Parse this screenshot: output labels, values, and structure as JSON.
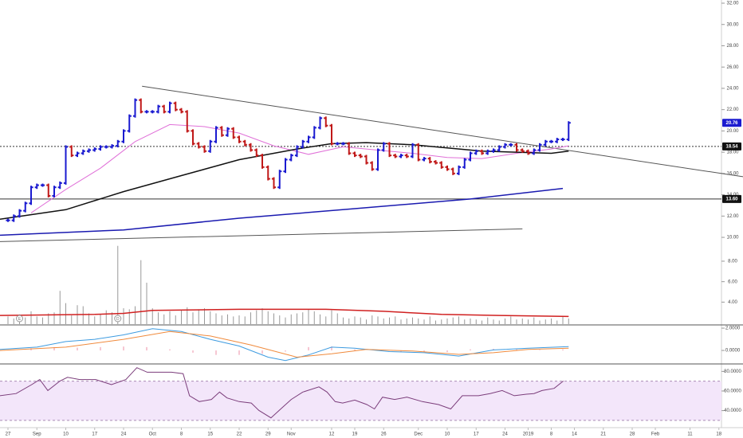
{
  "chart_data": [
    {
      "type": "price",
      "xlim": [
        -1.38,
        127.17
      ],
      "ylim": [
        9.48,
        32.3
      ],
      "yticks": [
        {
          "value": 32,
          "label": "32.00"
        },
        {
          "value": 30,
          "label": "30.00"
        },
        {
          "value": 28,
          "label": "28.00"
        },
        {
          "value": 26,
          "label": "26.00"
        },
        {
          "value": 24,
          "label": "24.00"
        },
        {
          "value": 22,
          "label": "22.00"
        },
        {
          "value": 20,
          "label": "20.00"
        },
        {
          "value": 18,
          "label": "18.00"
        },
        {
          "value": 16,
          "label": "16.00"
        },
        {
          "value": 14,
          "label": "14.00"
        },
        {
          "value": 12,
          "label": "12.00"
        },
        {
          "value": 10,
          "label": "10.00"
        }
      ],
      "xticks": [
        {
          "value": 0,
          "label": "27"
        },
        {
          "value": 5,
          "label": "Sep"
        },
        {
          "value": 10,
          "label": "10"
        },
        {
          "value": 15,
          "label": "17"
        },
        {
          "value": 20,
          "label": "24"
        },
        {
          "value": 25,
          "label": "Oct"
        },
        {
          "value": 30,
          "label": "8"
        },
        {
          "value": 35,
          "label": "15"
        },
        {
          "value": 40,
          "label": "22"
        },
        {
          "value": 45,
          "label": "29"
        },
        {
          "value": 49,
          "label": "Nov"
        },
        {
          "value": 56,
          "label": "12"
        },
        {
          "value": 60,
          "label": "19"
        },
        {
          "value": 65,
          "label": "26"
        },
        {
          "value": 71,
          "label": "Dec"
        },
        {
          "value": 76,
          "label": "10"
        },
        {
          "value": 81,
          "label": "17"
        },
        {
          "value": 86,
          "label": "24"
        },
        {
          "value": 90,
          "label": "2019"
        },
        {
          "value": 94,
          "label": "8"
        },
        {
          "value": 98,
          "label": "14"
        },
        {
          "value": 103,
          "label": "21"
        },
        {
          "value": 108,
          "label": "28"
        },
        {
          "value": 112,
          "label": "Feb"
        },
        {
          "value": 118,
          "label": "11"
        },
        {
          "value": 123,
          "label": "18"
        }
      ],
      "up_color": "#1a1ad0",
      "down_color": "#c01818",
      "values": [
        11.6,
        12.0,
        12.5,
        13.2,
        14.7,
        14.9,
        14.9,
        13.9,
        14.7,
        15.1,
        18.5,
        17.7,
        17.9,
        18.1,
        18.2,
        18.3,
        18.5,
        18.5,
        18.6,
        19.0,
        20.0,
        21.4,
        22.9,
        21.8,
        21.8,
        21.8,
        22.3,
        21.8,
        22.6,
        22.0,
        21.8,
        20.0,
        18.8,
        18.5,
        18.1,
        19.0,
        20.3,
        19.6,
        20.2,
        19.4,
        19.0,
        18.7,
        18.2,
        17.7,
        16.6,
        15.5,
        14.7,
        16.2,
        17.3,
        17.7,
        18.5,
        19.0,
        19.4,
        20.3,
        21.2,
        20.5,
        18.8,
        18.8,
        18.8,
        17.9,
        17.7,
        17.6,
        17.0,
        16.4,
        18.2,
        18.8,
        17.7,
        17.6,
        17.7,
        17.6,
        18.7,
        17.3,
        17.4,
        17.1,
        17.0,
        16.6,
        16.4,
        16.0,
        16.6,
        17.3,
        17.9,
        18.1,
        17.9,
        18.1,
        18.2,
        18.5,
        18.7,
        18.7,
        18.2,
        18.1,
        17.9,
        18.2,
        18.7,
        19.0,
        19.0,
        19.2,
        19.2,
        20.76
      ],
      "lines": [
        {
          "color": "#e070d8",
          "x": [
            4,
            10,
            16,
            22,
            28,
            34,
            40,
            46,
            52,
            58,
            64,
            70,
            76,
            82,
            88,
            94,
            97
          ],
          "values": [
            12.3,
            14.5,
            16.5,
            19.0,
            20.6,
            20.4,
            19.8,
            18.6,
            17.8,
            18.5,
            18.2,
            17.9,
            17.5,
            17.4,
            17.9,
            18.3,
            18.6
          ]
        },
        {
          "color": "#111111",
          "x": [
            -1.38,
            10,
            20,
            30,
            40,
            50,
            56,
            62,
            70,
            76,
            82,
            88,
            94,
            97
          ],
          "values": [
            11.7,
            12.6,
            14.3,
            15.8,
            17.3,
            18.3,
            18.8,
            18.9,
            18.7,
            18.4,
            18.1,
            18.0,
            17.9,
            18.1
          ]
        },
        {
          "color": "#1a1ab0",
          "x": [
            -1.38,
            20,
            40,
            60,
            80,
            96
          ],
          "values": [
            10.2,
            10.7,
            11.8,
            12.7,
            13.6,
            14.6
          ]
        }
      ],
      "trendlines": [
        {
          "color": "#555555",
          "x": [
            23.2,
            127.17
          ],
          "values": [
            24.2,
            15.7
          ]
        },
        {
          "color": "#555555",
          "x": [
            -1.38,
            89
          ],
          "values": [
            9.6,
            10.8
          ]
        }
      ],
      "levels": [
        {
          "value": 18.54,
          "label": "18.54",
          "style": "dotted"
        },
        {
          "value": 13.6,
          "label": "13.60",
          "style": "solid"
        }
      ],
      "last": {
        "value": 20.76,
        "label": "20.76"
      }
    },
    {
      "type": "volume",
      "ylim": [
        1.85,
        10.1
      ],
      "yticks": [
        {
          "value": 8,
          "label": "8.00"
        },
        {
          "value": 6,
          "label": "6.00"
        },
        {
          "value": 4,
          "label": "4.00"
        }
      ],
      "color": "#999999",
      "values": [
        2.6,
        2.4,
        2.8,
        2.5,
        3.1,
        2.6,
        2.5,
        2.9,
        3.0,
        5.1,
        3.9,
        2.7,
        3.7,
        3.6,
        2.9,
        2.6,
        2.8,
        3.2,
        3.0,
        9.5,
        3.4,
        3.3,
        3.6,
        8.1,
        5.9,
        3.4,
        3.0,
        2.8,
        3.1,
        2.7,
        3.2,
        3.5,
        3.0,
        3.3,
        3.4,
        3.1,
        2.9,
        2.7,
        2.8,
        2.6,
        2.7,
        2.6,
        3.0,
        3.2,
        3.4,
        3.1,
        2.9,
        2.7,
        2.5,
        2.8,
        2.9,
        3.0,
        3.3,
        3.1,
        2.8,
        2.6,
        3.2,
        2.9,
        2.5,
        2.4,
        2.6,
        2.5,
        2.3,
        2.7,
        2.6,
        2.4,
        2.5,
        2.6,
        2.3,
        2.4,
        2.5,
        2.4,
        2.3,
        2.6,
        2.2,
        2.3,
        2.4,
        2.5,
        2.6,
        2.3,
        2.4,
        2.3,
        2.2,
        2.5,
        2.3,
        2.2,
        2.4,
        2.6,
        2.3,
        2.4,
        2.3,
        2.5,
        2.2,
        2.3,
        2.4,
        2.2,
        2.6,
        2.4
      ],
      "ma": {
        "color": "#d02020",
        "x": [
          -1.38,
          15,
          20,
          25,
          40,
          55,
          65,
          75,
          85,
          97
        ],
        "values": [
          2.7,
          2.8,
          2.9,
          3.2,
          3.3,
          3.3,
          3.1,
          2.8,
          2.7,
          2.6
        ]
      },
      "events": [
        {
          "x": 2,
          "label": "E"
        },
        {
          "x": 19,
          "label": "D"
        }
      ]
    },
    {
      "type": "macd",
      "ylim": [
        -1.21,
        2.29
      ],
      "yticks": [
        {
          "value": 2,
          "label": "2.0000"
        },
        {
          "value": 0,
          "label": "0.0000"
        }
      ],
      "histogram": {
        "color": "#f0a0b4",
        "x": [
          0,
          4,
          8,
          12,
          16,
          20,
          24,
          28,
          32,
          36,
          40,
          44,
          48,
          52,
          56,
          60,
          64,
          68,
          72,
          76,
          80,
          84,
          88,
          92,
          96
        ],
        "values": [
          0.05,
          0.2,
          0.3,
          0.25,
          0.3,
          0.35,
          0.3,
          0.1,
          -0.2,
          -0.4,
          -0.4,
          -0.3,
          -0.1,
          0.3,
          0.35,
          0.1,
          0,
          -0.1,
          -0.1,
          -0.15,
          0.1,
          0.15,
          0.1,
          0.05,
          0.1
        ]
      },
      "lines": [
        {
          "color": "#3d9be0",
          "x": [
            -1.38,
            5,
            10,
            15,
            20,
            25,
            30,
            35,
            40,
            45,
            48,
            52,
            56,
            60,
            66,
            72,
            78,
            84,
            90,
            97
          ],
          "values": [
            0.1,
            0.3,
            0.8,
            1.0,
            1.4,
            1.95,
            1.7,
            1.0,
            0.4,
            -0.6,
            -0.9,
            -0.4,
            0.3,
            0.2,
            -0.1,
            -0.2,
            -0.5,
            0.05,
            0.2,
            0.35
          ]
        },
        {
          "color": "#f08a3c",
          "x": [
            -1.38,
            10,
            20,
            28,
            35,
            42,
            50,
            56,
            62,
            70,
            78,
            84,
            90,
            97
          ],
          "values": [
            0.0,
            0.3,
            1.0,
            1.7,
            1.3,
            0.5,
            -0.6,
            -0.3,
            0.1,
            -0.05,
            -0.35,
            -0.2,
            0.1,
            0.2
          ]
        }
      ]
    },
    {
      "type": "rsi",
      "ylim": [
        22.6,
        86.8
      ],
      "yticks": [
        {
          "value": 80,
          "label": "80.0000"
        },
        {
          "value": 60,
          "label": "60.0000"
        },
        {
          "value": 40,
          "label": "40.0000"
        }
      ],
      "band": [
        30,
        70
      ],
      "color": "#7b3d7b",
      "x": [
        -1.4,
        1.4,
        4.1,
        5.5,
        6.9,
        9.0,
        10.3,
        12.4,
        15.2,
        17.9,
        20.4,
        22.3,
        24.1,
        28.3,
        30.3,
        31.4,
        33.1,
        35.2,
        36.6,
        37.9,
        40.0,
        42.1,
        43.4,
        45.5,
        47.2,
        49.0,
        51.0,
        53.8,
        55.2,
        56.6,
        57.9,
        60.0,
        62.1,
        63.4,
        64.8,
        66.9,
        69.0,
        71.7,
        74.5,
        76.6,
        78.6,
        81.4,
        83.4,
        85.5,
        87.6,
        89.7,
        91.0,
        92.4,
        94.5,
        96.1
      ],
      "values": [
        55.2,
        57.4,
        66.5,
        71.7,
        60.5,
        70.2,
        74.0,
        71.7,
        71.7,
        66.5,
        71.7,
        83.8,
        79.2,
        79.2,
        77.7,
        55.2,
        49.2,
        51.4,
        58.9,
        52.9,
        49.2,
        47.7,
        40.2,
        32.6,
        41.7,
        51.4,
        58.9,
        64.2,
        58.9,
        49.2,
        47.7,
        50.7,
        46.2,
        41.7,
        53.7,
        51.4,
        53.7,
        49.2,
        46.2,
        41.7,
        55.2,
        55.2,
        57.4,
        60.5,
        55.2,
        56.7,
        57.4,
        60.5,
        62.7,
        70.2
      ]
    }
  ]
}
